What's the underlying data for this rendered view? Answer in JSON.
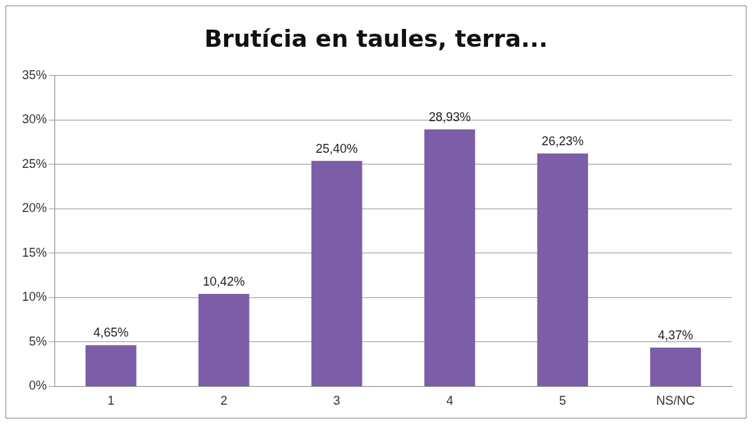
{
  "chart_data": {
    "type": "bar",
    "title": "Brutícia en taules, terra...",
    "categories": [
      "1",
      "2",
      "3",
      "4",
      "5",
      "NS/NC"
    ],
    "values": [
      4.65,
      10.42,
      25.4,
      28.93,
      26.23,
      4.37
    ],
    "value_labels": [
      "4,65%",
      "10,42%",
      "25,40%",
      "28,93%",
      "26,23%",
      "4,37%"
    ],
    "color": "#7b5ea7",
    "ylim": [
      0,
      35
    ],
    "yticks": [
      {
        "value": 0,
        "label": "0%"
      },
      {
        "value": 5,
        "label": "5%"
      },
      {
        "value": 10,
        "label": "10%"
      },
      {
        "value": 15,
        "label": "15%"
      },
      {
        "value": 20,
        "label": "20%"
      },
      {
        "value": 25,
        "label": "25%"
      },
      {
        "value": 30,
        "label": "30%"
      },
      {
        "value": 35,
        "label": "35%"
      }
    ],
    "grid": "y"
  }
}
